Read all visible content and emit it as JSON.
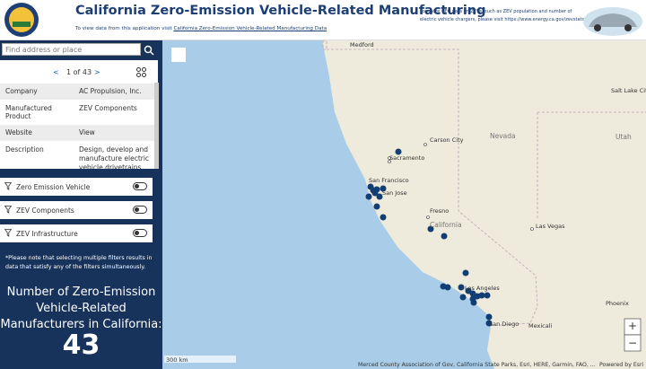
{
  "header": {
    "title": "California Zero-Emission Vehicle-Related Manufacturing",
    "subtitle": "To view data from this application visit",
    "subtitle_link": "California Zero-Emission Vehicle-Related Manufacturing Data",
    "more_info": "For more CEC data on ZEVs, such as ZEV population and number of electric vehicle chargers, please visit https://www.energy.ca.gov/zevstats"
  },
  "sidebar": {
    "search_placeholder": "Find address or place",
    "pager": "1 of 43",
    "table": {
      "rows": [
        [
          "Company",
          "AC Propulsion, Inc."
        ],
        [
          "Manufactured Product",
          "ZEV Components"
        ],
        [
          "Website",
          "View"
        ],
        [
          "Description",
          "Design, develop and manufacture electric vehicle drivetrains and components, and"
        ]
      ]
    },
    "filters": [
      "Zero Emission Vehicle",
      "ZEV Components",
      "ZEV Infrastructure"
    ],
    "note": "*Please note that selecting multiple filters results in data that satisfy any of the filters simultaneously.",
    "count_label": "Number of Zero-Emission Vehicle-Related Manufacturers in California:",
    "count": "43"
  },
  "map": {
    "labels": [
      "Medford",
      "Salt Lake City",
      "Carson City",
      "Sacramento",
      "San Francisco",
      "San Jose",
      "Fresno",
      "Las Vegas",
      "Los Angeles",
      "San Diego",
      "Mexicali",
      "Phoenix"
    ],
    "states": [
      "Nevada",
      "Utah",
      "California"
    ],
    "scale": "300 km",
    "attribution": "Merced County Association of Gov, California State Parks, Esri, HERE, Garmin, FAO, ...",
    "powered": "Powered by Esri"
  }
}
